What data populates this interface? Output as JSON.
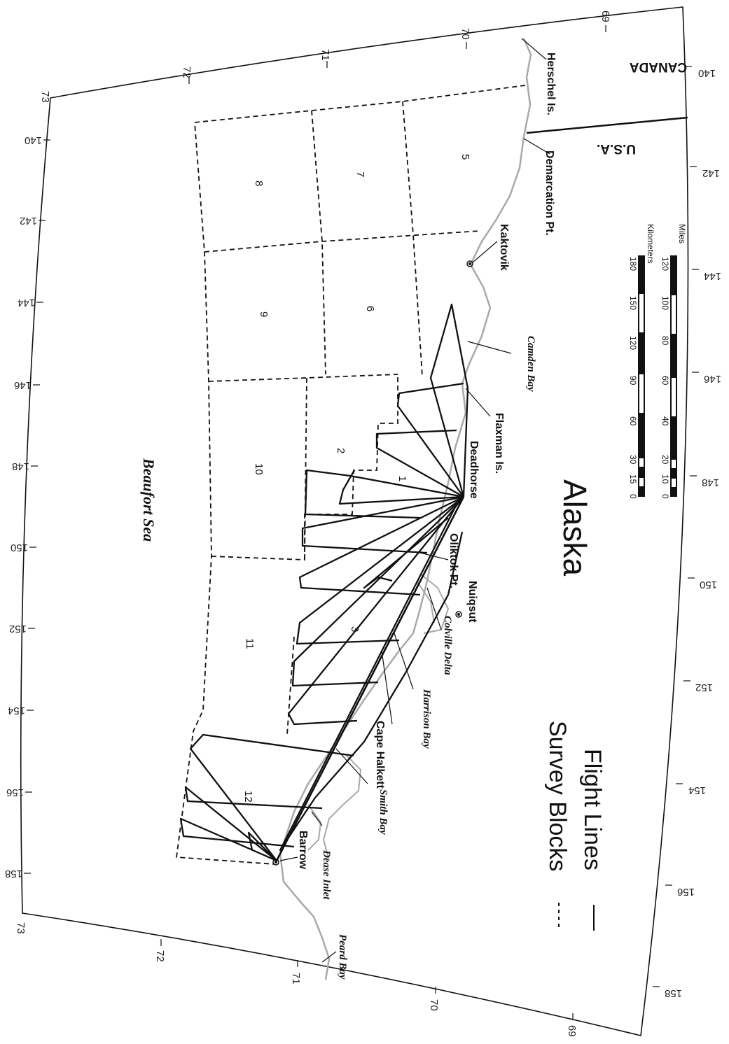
{
  "map": {
    "sea_label": "Beaufort Sea",
    "region_label": "Alaska",
    "countries": {
      "canada": "CANADA",
      "usa": "U.S.A."
    },
    "places": {
      "herschel": "Herschel Is.",
      "demarcation": "Demarcation Pt.",
      "kaktovik": "Kaktovik",
      "flaxman": "Flaxman Is.",
      "deadhorse": "Deadhorse",
      "oliktok": "Oliktok Pt.",
      "nuiqsut": "Nuiqsut",
      "cape_halkett": "Cape Halkett",
      "barrow": "Barrow"
    },
    "water_features": {
      "camden": "Camden Bay",
      "colville": "Colville Delta",
      "harrison": "Harrison Bay",
      "smith": "Smith Bay",
      "dease": "Dease Inlet",
      "peard": "Peard Bay"
    },
    "survey_blocks": [
      "1",
      "2",
      "3",
      "5",
      "6",
      "7",
      "8",
      "9",
      "10",
      "11",
      "12"
    ],
    "lat_labels": {
      "left": [
        "72",
        "71",
        "70",
        "69"
      ],
      "right": [
        "72",
        "71",
        "70",
        "69"
      ],
      "corners": [
        "73",
        "73"
      ]
    },
    "lon_labels": {
      "top": [
        "140",
        "142",
        "144",
        "146",
        "148",
        "150",
        "152",
        "154",
        "156",
        "158"
      ],
      "bottom": [
        "140",
        "142",
        "144",
        "146",
        "148",
        "150",
        "152",
        "154",
        "156",
        "158"
      ]
    },
    "legend": {
      "blocks": "Survey Blocks",
      "lines": "Flight Lines"
    },
    "scale_bar": {
      "km_title": "Kilometers",
      "km_ticks": [
        "0",
        "15",
        "30",
        "60",
        "90",
        "120",
        "150",
        "180"
      ],
      "mi_title": "Miles",
      "mi_ticks": [
        "0",
        "10",
        "20",
        "40",
        "60",
        "80",
        "100",
        "120"
      ]
    },
    "colors": {
      "ink": "#111111",
      "coast": "#a9a9a9"
    }
  }
}
